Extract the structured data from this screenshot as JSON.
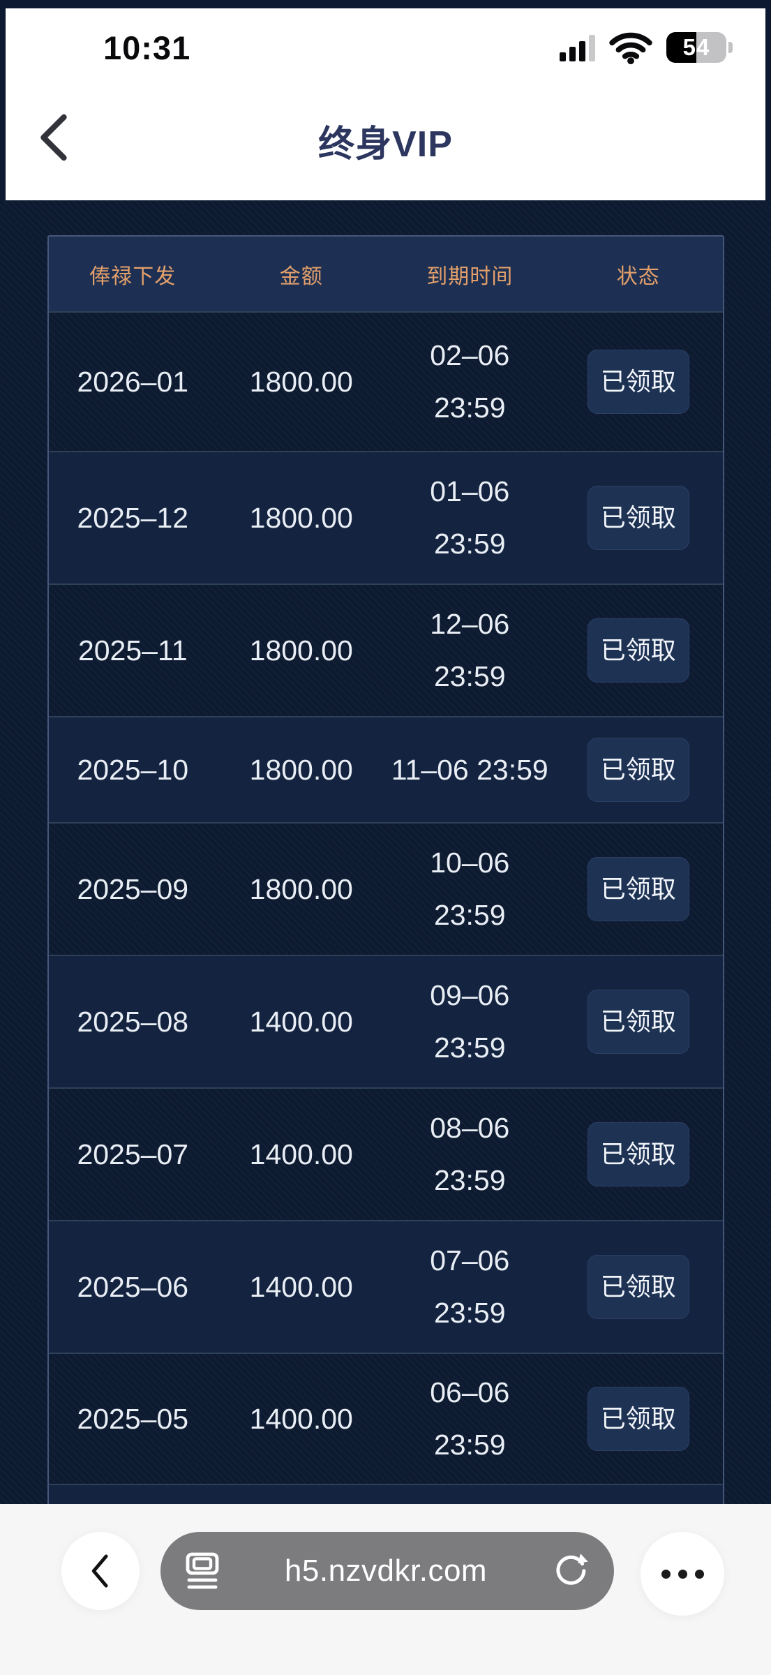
{
  "status_bar": {
    "time": "10:31",
    "battery_percent": "54",
    "icons": [
      "signal-bars-icon",
      "wifi-icon",
      "battery-icon"
    ]
  },
  "nav": {
    "title": "终身VIP",
    "back_icon": "chevron-left-icon"
  },
  "table": {
    "headers": [
      "俸禄下发",
      "金额",
      "到期时间",
      "状态"
    ],
    "rows": [
      {
        "period": "2026–01",
        "amount": "1800.00",
        "expire": "02–06\n23:59",
        "status": "已领取"
      },
      {
        "period": "2025–12",
        "amount": "1800.00",
        "expire": "01–06\n23:59",
        "status": "已领取"
      },
      {
        "period": "2025–11",
        "amount": "1800.00",
        "expire": "12–06\n23:59",
        "status": "已领取"
      },
      {
        "period": "2025–10",
        "amount": "1800.00",
        "expire": "11–06 23:59",
        "status": "已领取"
      },
      {
        "period": "2025–09",
        "amount": "1800.00",
        "expire": "10–06\n23:59",
        "status": "已领取"
      },
      {
        "period": "2025–08",
        "amount": "1400.00",
        "expire": "09–06\n23:59",
        "status": "已领取"
      },
      {
        "period": "2025–07",
        "amount": "1400.00",
        "expire": "08–06\n23:59",
        "status": "已领取"
      },
      {
        "period": "2025–06",
        "amount": "1400.00",
        "expire": "07–06\n23:59",
        "status": "已领取"
      },
      {
        "period": "2025–05",
        "amount": "1400.00",
        "expire": "06–06\n23:59",
        "status": "已领取"
      }
    ]
  },
  "browser_bar": {
    "url": "h5.nzvdkr.com",
    "icons": [
      "chevron-left-icon",
      "reader-icon",
      "reload-icon",
      "ellipsis-icon"
    ]
  },
  "colors": {
    "page_background": "#0d1a2f",
    "row_alt_background": "#142440",
    "table_header_background": "#1d2f52",
    "table_border": "#46587a",
    "header_text_accent": "#e3a06b",
    "cell_text": "#e9eef5",
    "button_background": "#1e3254",
    "nav_title": "#2c365e",
    "toolbar_background": "#f6f6f7",
    "url_pill_background": "#7c7c7e"
  }
}
